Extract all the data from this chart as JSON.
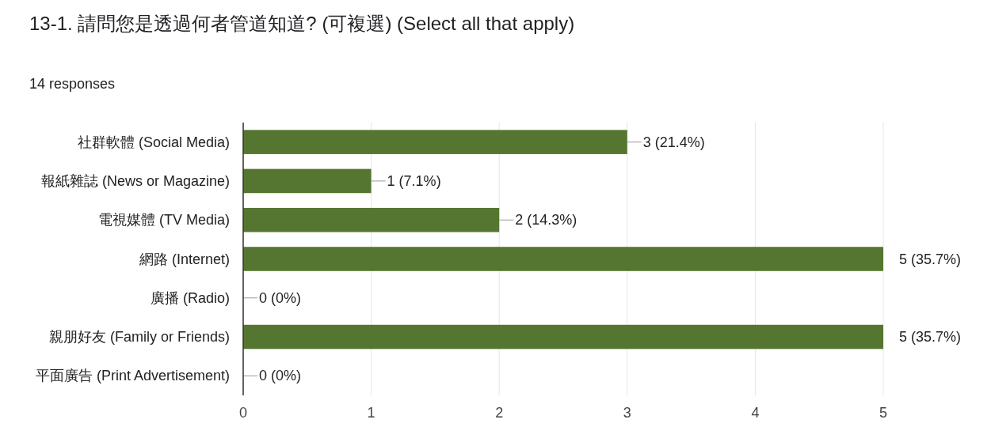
{
  "chart_data": {
    "type": "bar",
    "orientation": "horizontal",
    "title": "13-1. 請問您是透過何者管道知道? (可複選) (Select all that apply)",
    "subtitle": "14 responses",
    "categories": [
      "社群軟體 (Social Media)",
      "報紙雜誌 (News or Magazine)",
      "電視媒體 (TV Media)",
      "網路 (Internet)",
      "廣播 (Radio)",
      "親朋好友 (Family or Friends)",
      "平面廣告 (Print Advertisement)"
    ],
    "values": [
      3,
      1,
      2,
      5,
      0,
      5,
      0
    ],
    "value_labels": [
      "3 (21.4%)",
      "1 (7.1%)",
      "2 (14.3%)",
      "5 (35.7%)",
      "0 (0%)",
      "5 (35.7%)",
      "0 (0%)"
    ],
    "color": "#557630",
    "xlim": [
      0,
      5
    ],
    "xticks": [
      0,
      1,
      2,
      3,
      4,
      5
    ],
    "grid": "x"
  }
}
